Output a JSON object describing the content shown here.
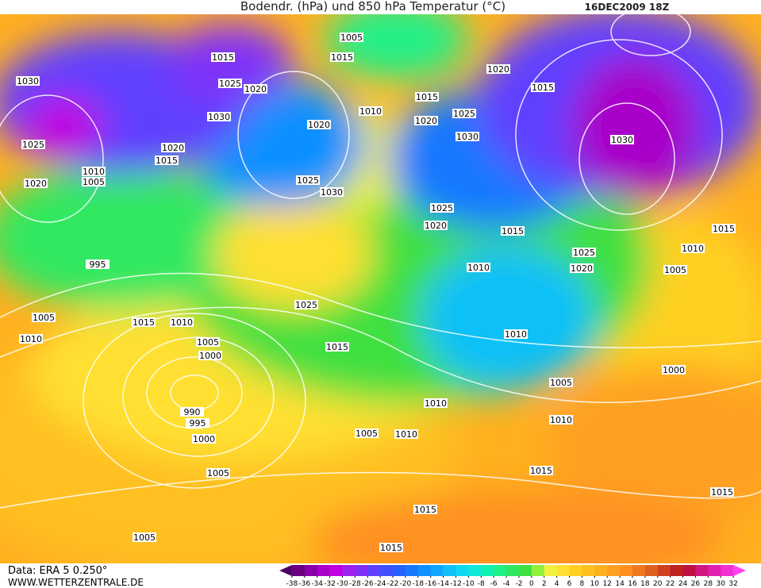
{
  "header": {
    "title": "Bodendr. (hPa) und 850 hPa Temperatur (°C)",
    "date": "16DEC2009 18Z"
  },
  "footer": {
    "data_source": "Data: ERA 5 0.250°",
    "website": "WWW.WETTERZENTRALE.DE"
  },
  "colorbar": {
    "ticks": [
      -38,
      -36,
      -34,
      -32,
      -30,
      -28,
      -26,
      -24,
      -22,
      -20,
      -18,
      -16,
      -14,
      -12,
      -10,
      -8,
      -6,
      -4,
      -2,
      0,
      2,
      4,
      6,
      8,
      10,
      12,
      14,
      16,
      18,
      20,
      22,
      24,
      26,
      28,
      30,
      32
    ],
    "colors": [
      "#4b0060",
      "#6a0080",
      "#8a00a8",
      "#a800c8",
      "#c000e0",
      "#a020f0",
      "#8030f8",
      "#6040ff",
      "#4050ff",
      "#2860ff",
      "#1878ff",
      "#1090ff",
      "#10a8ff",
      "#10c0f8",
      "#10d8f0",
      "#10e8d8",
      "#10f0b0",
      "#20f088",
      "#30e860",
      "#40e040",
      "#90f040",
      "#f0f040",
      "#ffe030",
      "#ffd020",
      "#ffc020",
      "#ffb020",
      "#ffa020",
      "#ff9020",
      "#f07820",
      "#e06020",
      "#d04020",
      "#c02020",
      "#c01040",
      "#d01880",
      "#e020b0",
      "#f030d0",
      "#ff40f0"
    ]
  },
  "isobars": [
    "1005",
    "1015",
    "1015",
    "1030",
    "1025",
    "1020",
    "1010",
    "1015",
    "1025",
    "1020",
    "1015",
    "1030",
    "1020",
    "1020",
    "1030",
    "1030",
    "1025",
    "1020",
    "1015",
    "1010",
    "1005",
    "1020",
    "1025",
    "1030",
    "1025",
    "1020",
    "1015",
    "1015",
    "1025",
    "1010",
    "995",
    "1010",
    "1020",
    "1005",
    "1025",
    "1005",
    "1015",
    "1010",
    "1010",
    "1005",
    "1015",
    "1010",
    "1000",
    "1000",
    "1005",
    "1010",
    "990",
    "995",
    "1005",
    "1010",
    "1010",
    "1000",
    "1005",
    "1015",
    "1015",
    "1015",
    "1005",
    "1015"
  ]
}
